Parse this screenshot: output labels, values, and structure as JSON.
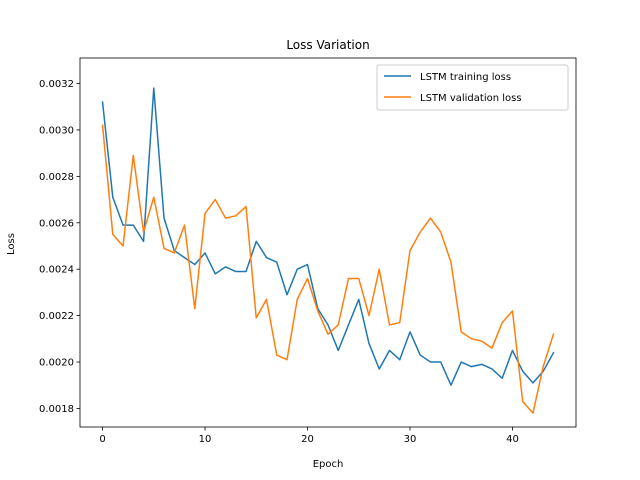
{
  "chart_data": {
    "type": "line",
    "title": "Loss Variation",
    "xlabel": "Epoch",
    "ylabel": "Loss",
    "xlim": [
      -2.2,
      46.2
    ],
    "ylim": [
      0.00172,
      0.00331
    ],
    "xticks": [
      0,
      10,
      20,
      30,
      40
    ],
    "yticks": [
      0.0018,
      0.002,
      0.0022,
      0.0024,
      0.0026,
      0.0028,
      0.003,
      0.0032
    ],
    "ytick_labels": [
      "0.0018",
      "0.0020",
      "0.0022",
      "0.0024",
      "0.0026",
      "0.0028",
      "0.0030",
      "0.0032"
    ],
    "grid": false,
    "legend": "top-right",
    "series": [
      {
        "name": "LSTM training loss",
        "color": "#1f77b4",
        "x": [
          0,
          1,
          2,
          3,
          4,
          5,
          6,
          7,
          8,
          9,
          10,
          11,
          12,
          13,
          14,
          15,
          16,
          17,
          18,
          19,
          20,
          21,
          22,
          23,
          24,
          25,
          26,
          27,
          28,
          29,
          30,
          31,
          32,
          33,
          34,
          35,
          36,
          37,
          38,
          39,
          40,
          41,
          42,
          43,
          44
        ],
        "values": [
          0.00312,
          0.00271,
          0.00259,
          0.00259,
          0.00252,
          0.00318,
          0.00262,
          0.00248,
          0.00245,
          0.00242,
          0.00247,
          0.00238,
          0.00241,
          0.00239,
          0.00239,
          0.00252,
          0.00245,
          0.00243,
          0.00229,
          0.0024,
          0.00242,
          0.00223,
          0.00216,
          0.00205,
          0.00216,
          0.00227,
          0.00208,
          0.00197,
          0.00205,
          0.00201,
          0.00213,
          0.00203,
          0.002,
          0.002,
          0.0019,
          0.002,
          0.00198,
          0.00199,
          0.00197,
          0.00193,
          0.00205,
          0.00196,
          0.00191,
          0.00196,
          0.00204
        ]
      },
      {
        "name": "LSTM validation loss",
        "color": "#ff7f0e",
        "x": [
          0,
          1,
          2,
          3,
          4,
          5,
          6,
          7,
          8,
          9,
          10,
          11,
          12,
          13,
          14,
          15,
          16,
          17,
          18,
          19,
          20,
          21,
          22,
          23,
          24,
          25,
          26,
          27,
          28,
          29,
          30,
          31,
          32,
          33,
          34,
          35,
          36,
          37,
          38,
          39,
          40,
          41,
          42,
          43,
          44
        ],
        "values": [
          0.00302,
          0.00255,
          0.0025,
          0.00289,
          0.00256,
          0.00271,
          0.00249,
          0.00247,
          0.00259,
          0.00223,
          0.00264,
          0.0027,
          0.00262,
          0.00263,
          0.00267,
          0.00219,
          0.00227,
          0.00203,
          0.00201,
          0.00227,
          0.00236,
          0.00222,
          0.00212,
          0.00216,
          0.00236,
          0.00236,
          0.0022,
          0.0024,
          0.00216,
          0.00217,
          0.00248,
          0.00256,
          0.00262,
          0.00256,
          0.00243,
          0.00213,
          0.0021,
          0.00209,
          0.00206,
          0.00217,
          0.00222,
          0.00183,
          0.00178,
          0.00198,
          0.00212
        ]
      }
    ]
  }
}
